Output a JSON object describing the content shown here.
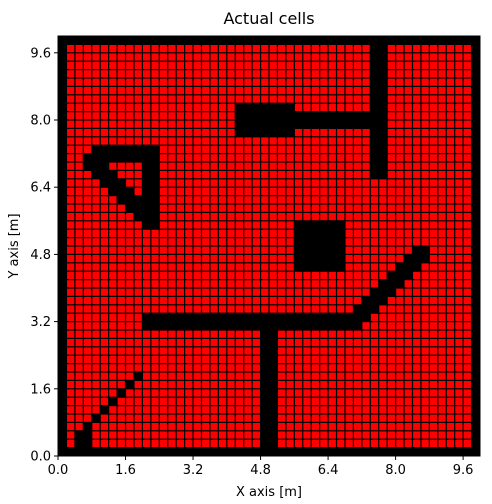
{
  "chart_data": {
    "type": "heatmap",
    "title": "Actual cells",
    "xlabel": "X axis [m]",
    "ylabel": "Y axis [m]",
    "xlim": [
      0.0,
      10.0
    ],
    "ylim": [
      0.0,
      10.0
    ],
    "cell_size": 0.2,
    "x_ticks": [
      "0.0",
      "1.6",
      "3.2",
      "4.8",
      "6.4",
      "8.0",
      "9.6"
    ],
    "y_ticks": [
      "0.0",
      "1.6",
      "3.2",
      "4.8",
      "6.4",
      "8.0",
      "9.6"
    ],
    "free_color": "#ff0000",
    "grid_color": "#000000",
    "occupied_color": "#000000",
    "border_cells": 1,
    "grid": true,
    "obstacles": [
      {
        "kind": "rect",
        "x": [
          4.2,
          5.6
        ],
        "y": [
          7.6,
          8.4
        ]
      },
      {
        "kind": "rect",
        "x": [
          5.6,
          7.8
        ],
        "y": [
          7.8,
          8.2
        ]
      },
      {
        "kind": "rect",
        "x": [
          7.4,
          7.8
        ],
        "y": [
          6.6,
          10.0
        ]
      },
      {
        "kind": "rect",
        "x": [
          5.6,
          6.8
        ],
        "y": [
          4.4,
          5.6
        ]
      },
      {
        "kind": "rect",
        "x": [
          2.0,
          7.2
        ],
        "y": [
          3.0,
          3.4
        ]
      },
      {
        "kind": "rect",
        "x": [
          4.8,
          5.2
        ],
        "y": [
          0.0,
          3.4
        ]
      },
      {
        "kind": "rect",
        "x": [
          0.8,
          2.4
        ],
        "y": [
          7.0,
          7.4
        ]
      },
      {
        "kind": "rect",
        "x": [
          2.0,
          2.4
        ],
        "y": [
          5.6,
          7.4
        ]
      },
      {
        "kind": "diagonal",
        "x0": 0.8,
        "y0": 7.0,
        "x1": 2.2,
        "y1": 5.6,
        "width": 0.4
      },
      {
        "kind": "diagonal",
        "x0": 7.0,
        "y0": 3.2,
        "x1": 8.6,
        "y1": 4.8,
        "width": 0.4
      },
      {
        "kind": "diagonal",
        "x0": 0.4,
        "y0": 0.4,
        "x1": 2.0,
        "y1": 2.0,
        "width": 0.2
      },
      {
        "kind": "rect",
        "x": [
          0.4,
          0.8
        ],
        "y": [
          0.2,
          0.6
        ]
      }
    ]
  }
}
